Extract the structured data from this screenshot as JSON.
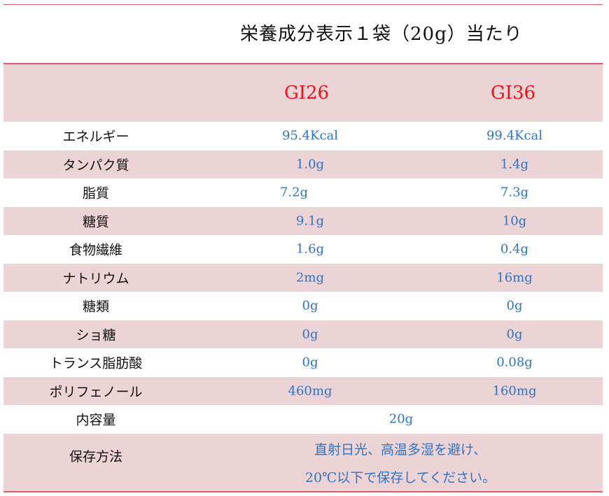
{
  "title": "栄養成分表示１袋（20g）当たり",
  "columns": [
    "GI26",
    "GI36"
  ],
  "rows": [
    {
      "label": "エネルギー",
      "gi26": "95.4Kcal",
      "gi36": "99.4Kcal"
    },
    {
      "label": "タンパク質",
      "gi26": "1.0g",
      "gi36": "1.4g"
    },
    {
      "label": "脂質",
      "gi26": "7.2g",
      "gi36": "7.3g"
    },
    {
      "label": "糖質",
      "gi26": "9.1g",
      "gi36": "10g"
    },
    {
      "label": "食物繊維",
      "gi26": "1.6g",
      "gi36": "0.4g"
    },
    {
      "label": "ナトリウム",
      "gi26": "2mg",
      "gi36": "16mg"
    },
    {
      "label": "糖類",
      "gi26": "0g",
      "gi36": "0g"
    },
    {
      "label": "ショ糖",
      "gi26": "0g",
      "gi36": "0g"
    },
    {
      "label": "トランス脂肪酸",
      "gi26": "0g",
      "gi36": "0.08g"
    },
    {
      "label": "ポリフェノール",
      "gi26": "460mg",
      "gi36": "160mg"
    }
  ],
  "content": {
    "label": "内容量",
    "value": "20g"
  },
  "storage": {
    "label": "保存方法",
    "line1": "直射日光、高温多湿を避け、",
    "line2": "20℃以下で保存してください。"
  },
  "colors": {
    "header_bg": "#ecd3d6",
    "rule": "#e05a6a",
    "gi_text": "#e8141a",
    "value_text": "#2f74c0"
  }
}
